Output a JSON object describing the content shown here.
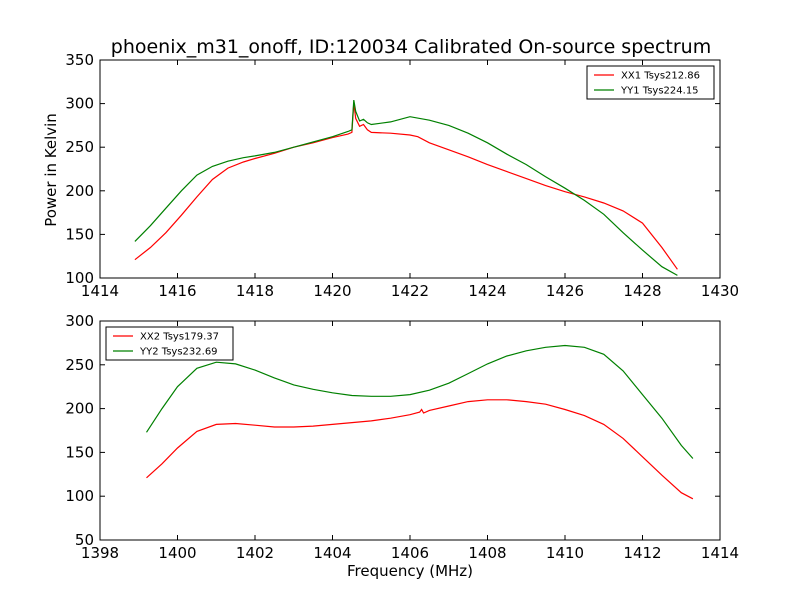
{
  "figure": {
    "title": "phoenix_m31_onoff, ID:120034 Calibrated On-source spectrum"
  },
  "chart_data": [
    {
      "type": "line",
      "title": "phoenix_m31_onoff, ID:120034 Calibrated On-source spectrum",
      "xlabel": "",
      "ylabel": "Power in Kelvin",
      "xlim": [
        1414,
        1430
      ],
      "ylim": [
        100,
        350
      ],
      "xticks": [
        1414,
        1416,
        1418,
        1420,
        1422,
        1424,
        1426,
        1428,
        1430
      ],
      "yticks": [
        100,
        150,
        200,
        250,
        300,
        350
      ],
      "grid": false,
      "legend_position": "top-right",
      "series": [
        {
          "name": "XX1 Tsys212.86",
          "color": "#ff0000",
          "points": [
            [
              1414.9,
              121
            ],
            [
              1415.3,
              135
            ],
            [
              1415.7,
              152
            ],
            [
              1416.1,
              172
            ],
            [
              1416.5,
              193
            ],
            [
              1416.9,
              213
            ],
            [
              1417.3,
              226
            ],
            [
              1417.7,
              233
            ],
            [
              1418.0,
              237
            ],
            [
              1418.5,
              243
            ],
            [
              1419.0,
              250
            ],
            [
              1419.5,
              255
            ],
            [
              1420.0,
              261
            ],
            [
              1420.4,
              265
            ],
            [
              1420.5,
              267
            ],
            [
              1420.55,
              301
            ],
            [
              1420.6,
              283
            ],
            [
              1420.7,
              274
            ],
            [
              1420.8,
              276
            ],
            [
              1420.9,
              270
            ],
            [
              1421.0,
              267
            ],
            [
              1421.5,
              266
            ],
            [
              1422.0,
              264
            ],
            [
              1422.2,
              262
            ],
            [
              1422.5,
              255
            ],
            [
              1423.0,
              247
            ],
            [
              1423.5,
              239
            ],
            [
              1424.0,
              230
            ],
            [
              1424.5,
              222
            ],
            [
              1425.0,
              214
            ],
            [
              1425.5,
              206
            ],
            [
              1426.0,
              199
            ],
            [
              1426.5,
              193
            ],
            [
              1427.0,
              186
            ],
            [
              1427.5,
              177
            ],
            [
              1428.0,
              163
            ],
            [
              1428.5,
              135
            ],
            [
              1428.9,
              110
            ]
          ]
        },
        {
          "name": "YY1 Tsys224.15",
          "color": "#008000",
          "points": [
            [
              1414.9,
              142
            ],
            [
              1415.3,
              160
            ],
            [
              1415.7,
              180
            ],
            [
              1416.1,
              200
            ],
            [
              1416.5,
              218
            ],
            [
              1416.9,
              228
            ],
            [
              1417.3,
              234
            ],
            [
              1417.7,
              238
            ],
            [
              1418.0,
              240
            ],
            [
              1418.5,
              244
            ],
            [
              1419.0,
              250
            ],
            [
              1419.5,
              256
            ],
            [
              1420.0,
              262
            ],
            [
              1420.4,
              268
            ],
            [
              1420.5,
              270
            ],
            [
              1420.55,
              304
            ],
            [
              1420.6,
              291
            ],
            [
              1420.7,
              280
            ],
            [
              1420.8,
              282
            ],
            [
              1420.9,
              278
            ],
            [
              1421.0,
              276
            ],
            [
              1421.5,
              279
            ],
            [
              1422.0,
              285
            ],
            [
              1422.5,
              281
            ],
            [
              1423.0,
              275
            ],
            [
              1423.5,
              266
            ],
            [
              1424.0,
              255
            ],
            [
              1424.5,
              242
            ],
            [
              1425.0,
              230
            ],
            [
              1425.5,
              216
            ],
            [
              1426.0,
              203
            ],
            [
              1426.5,
              189
            ],
            [
              1427.0,
              173
            ],
            [
              1427.5,
              152
            ],
            [
              1428.0,
              132
            ],
            [
              1428.5,
              113
            ],
            [
              1428.9,
              103
            ]
          ]
        }
      ]
    },
    {
      "type": "line",
      "title": "",
      "xlabel": "Frequency (MHz)",
      "ylabel": "",
      "xlim": [
        1398,
        1414
      ],
      "ylim": [
        50,
        300
      ],
      "xticks": [
        1398,
        1400,
        1402,
        1404,
        1406,
        1408,
        1410,
        1412,
        1414
      ],
      "yticks": [
        50,
        100,
        150,
        200,
        250,
        300
      ],
      "grid": false,
      "legend_position": "top-left",
      "series": [
        {
          "name": "XX2 Tsys179.37",
          "color": "#ff0000",
          "points": [
            [
              1399.2,
              121
            ],
            [
              1399.6,
              137
            ],
            [
              1400.0,
              155
            ],
            [
              1400.5,
              174
            ],
            [
              1401.0,
              182
            ],
            [
              1401.5,
              183
            ],
            [
              1402.0,
              181
            ],
            [
              1402.5,
              179
            ],
            [
              1403.0,
              179
            ],
            [
              1403.5,
              180
            ],
            [
              1404.0,
              182
            ],
            [
              1404.5,
              184
            ],
            [
              1405.0,
              186
            ],
            [
              1405.5,
              189
            ],
            [
              1406.0,
              193
            ],
            [
              1406.25,
              196
            ],
            [
              1406.3,
              199
            ],
            [
              1406.35,
              195
            ],
            [
              1406.5,
              198
            ],
            [
              1407.0,
              203
            ],
            [
              1407.5,
              208
            ],
            [
              1408.0,
              210
            ],
            [
              1408.5,
              210
            ],
            [
              1409.0,
              208
            ],
            [
              1409.5,
              205
            ],
            [
              1410.0,
              199
            ],
            [
              1410.5,
              192
            ],
            [
              1411.0,
              182
            ],
            [
              1411.5,
              166
            ],
            [
              1412.0,
              145
            ],
            [
              1412.5,
              124
            ],
            [
              1413.0,
              104
            ],
            [
              1413.3,
              97
            ]
          ]
        },
        {
          "name": "YY2 Tsys232.69",
          "color": "#008000",
          "points": [
            [
              1399.2,
              173
            ],
            [
              1399.6,
              200
            ],
            [
              1400.0,
              225
            ],
            [
              1400.5,
              246
            ],
            [
              1401.0,
              253
            ],
            [
              1401.5,
              251
            ],
            [
              1402.0,
              244
            ],
            [
              1402.5,
              235
            ],
            [
              1403.0,
              227
            ],
            [
              1403.5,
              222
            ],
            [
              1404.0,
              218
            ],
            [
              1404.5,
              215
            ],
            [
              1405.0,
              214
            ],
            [
              1405.5,
              214
            ],
            [
              1406.0,
              216
            ],
            [
              1406.5,
              221
            ],
            [
              1407.0,
              229
            ],
            [
              1407.5,
              240
            ],
            [
              1408.0,
              251
            ],
            [
              1408.5,
              260
            ],
            [
              1409.0,
              266
            ],
            [
              1409.5,
              270
            ],
            [
              1410.0,
              272
            ],
            [
              1410.5,
              270
            ],
            [
              1411.0,
              262
            ],
            [
              1411.5,
              243
            ],
            [
              1412.0,
              216
            ],
            [
              1412.5,
              189
            ],
            [
              1413.0,
              158
            ],
            [
              1413.3,
              143
            ]
          ]
        }
      ]
    }
  ]
}
